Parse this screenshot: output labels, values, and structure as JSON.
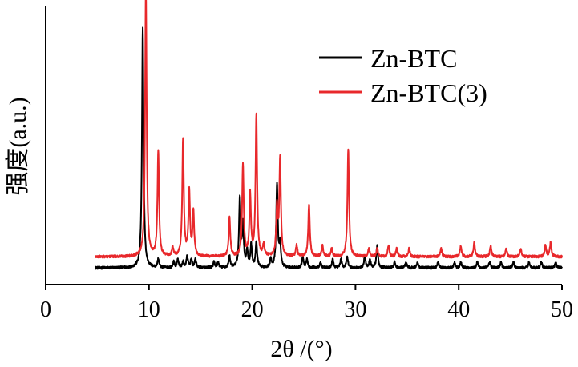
{
  "chart_data": {
    "type": "line",
    "xlabel": "2θ /(°)",
    "ylabel": "强度(a.u.)",
    "xlim": [
      0,
      50
    ],
    "x_ticks": [
      0,
      10,
      20,
      30,
      40,
      50
    ],
    "ylim": [
      0,
      100
    ],
    "grid": false,
    "legend": "top-right",
    "series": [
      {
        "name": "Zn-BTC",
        "color": "#000000",
        "baseline": 6,
        "peaks": [
          [
            9.4,
            86
          ],
          [
            10.9,
            3
          ],
          [
            12.4,
            2
          ],
          [
            12.8,
            3
          ],
          [
            13.3,
            2
          ],
          [
            13.7,
            4
          ],
          [
            14.1,
            3
          ],
          [
            14.5,
            3
          ],
          [
            16.3,
            2
          ],
          [
            16.7,
            2
          ],
          [
            17.8,
            4
          ],
          [
            18.8,
            25
          ],
          [
            19.1,
            15
          ],
          [
            19.5,
            6
          ],
          [
            19.9,
            8
          ],
          [
            20.4,
            9
          ],
          [
            21.8,
            3
          ],
          [
            22.4,
            30
          ],
          [
            22.7,
            8
          ],
          [
            24.9,
            4
          ],
          [
            25.3,
            3
          ],
          [
            26.6,
            2
          ],
          [
            27.8,
            3
          ],
          [
            28.6,
            3
          ],
          [
            29.2,
            4
          ],
          [
            30.9,
            4
          ],
          [
            31.4,
            3
          ],
          [
            32.1,
            8
          ],
          [
            33.8,
            2
          ],
          [
            34.9,
            2
          ],
          [
            36.0,
            2
          ],
          [
            38.0,
            2
          ],
          [
            39.6,
            2
          ],
          [
            40.2,
            2
          ],
          [
            41.8,
            2
          ],
          [
            43.0,
            2
          ],
          [
            44.1,
            2
          ],
          [
            45.3,
            2
          ],
          [
            46.8,
            2
          ],
          [
            48.0,
            2
          ],
          [
            49.4,
            2
          ]
        ]
      },
      {
        "name": "Zn-BTC(3)",
        "color": "#e8282b",
        "baseline": 10,
        "peaks": [
          [
            9.7,
            96
          ],
          [
            10.9,
            38
          ],
          [
            12.3,
            3
          ],
          [
            13.3,
            42
          ],
          [
            13.9,
            23
          ],
          [
            14.3,
            16
          ],
          [
            17.8,
            14
          ],
          [
            19.1,
            33
          ],
          [
            19.8,
            22
          ],
          [
            20.4,
            51
          ],
          [
            21.1,
            4
          ],
          [
            22.4,
            17
          ],
          [
            22.7,
            35
          ],
          [
            24.3,
            4
          ],
          [
            25.5,
            19
          ],
          [
            26.8,
            4
          ],
          [
            27.7,
            3
          ],
          [
            29.3,
            39
          ],
          [
            31.3,
            3
          ],
          [
            32.1,
            3
          ],
          [
            33.2,
            4
          ],
          [
            34.0,
            3
          ],
          [
            35.2,
            3
          ],
          [
            38.3,
            3
          ],
          [
            40.2,
            4
          ],
          [
            41.5,
            5
          ],
          [
            43.1,
            4
          ],
          [
            44.6,
            3
          ],
          [
            46.0,
            3
          ],
          [
            48.4,
            4
          ],
          [
            48.9,
            5
          ]
        ]
      }
    ]
  }
}
